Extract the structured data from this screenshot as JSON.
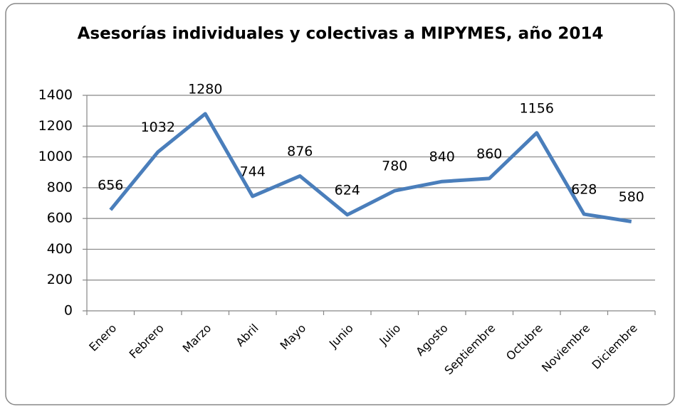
{
  "chart_data": {
    "type": "line",
    "title": "Asesorías individuales y colectivas a MIPYMES, año 2014",
    "categories": [
      "Enero",
      "Febrero",
      "Marzo",
      "Abril",
      "Mayo",
      "Junio",
      "Julio",
      "Agosto",
      "Septiembre",
      "Octubre",
      "Noviembre",
      "Diciembre"
    ],
    "values": [
      656,
      1032,
      1280,
      744,
      876,
      624,
      780,
      840,
      860,
      1156,
      628,
      580
    ],
    "color": "#4a7ebb",
    "ylim": [
      0,
      1400
    ],
    "yticks": [
      0,
      200,
      400,
      600,
      800,
      1000,
      1200,
      1400
    ],
    "grid": true
  }
}
